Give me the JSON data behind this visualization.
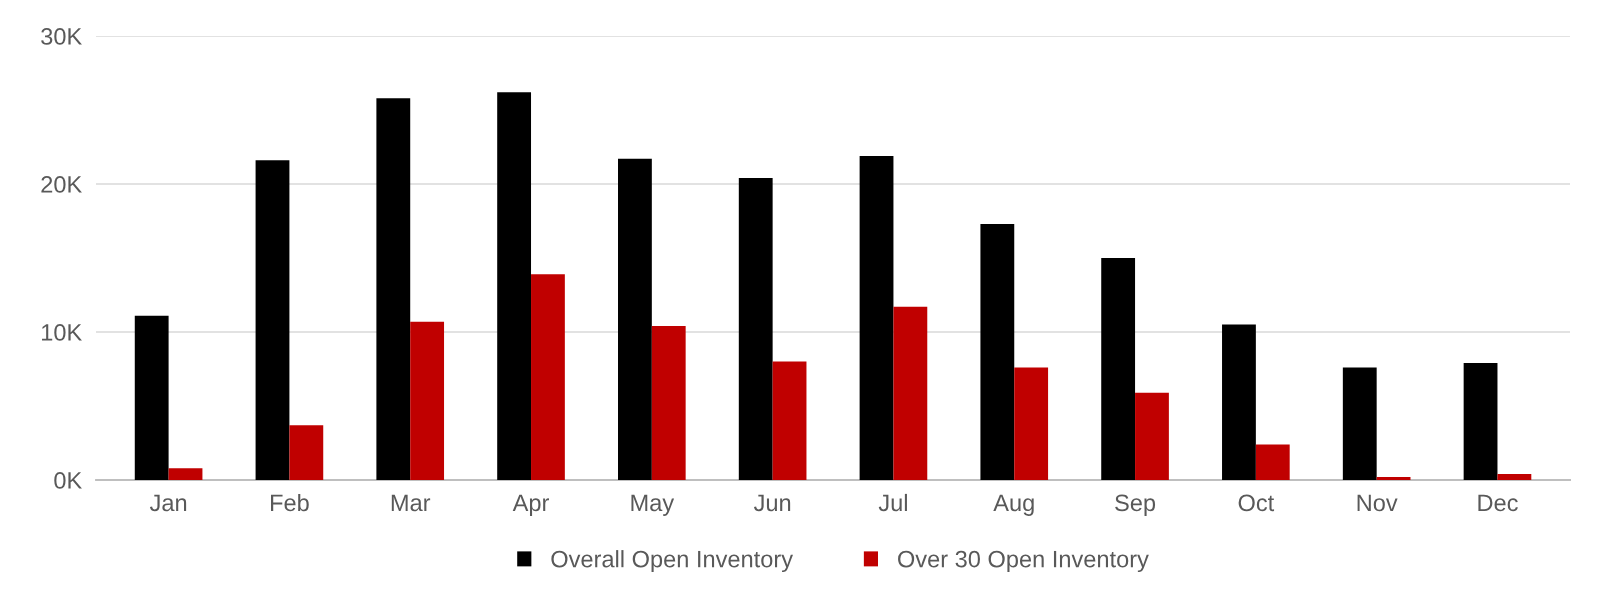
{
  "chart_data": {
    "type": "bar",
    "categories": [
      "Jan",
      "Feb",
      "Mar",
      "Apr",
      "May",
      "Jun",
      "Jul",
      "Aug",
      "Sep",
      "Oct",
      "Nov",
      "Dec"
    ],
    "series": [
      {
        "name": "Overall Open Inventory",
        "color": "#000000",
        "values": [
          11100,
          21600,
          25800,
          26200,
          21700,
          20400,
          21900,
          17300,
          15000,
          10500,
          7600,
          7900
        ]
      },
      {
        "name": "Over 30 Open Inventory",
        "color": "#c00000",
        "values": [
          800,
          3700,
          10700,
          13900,
          10400,
          8000,
          11700,
          7600,
          5900,
          2400,
          200,
          400
        ]
      }
    ],
    "ylim": [
      0,
      30000
    ],
    "yticks": [
      {
        "value": 0,
        "label": "0K"
      },
      {
        "value": 10000,
        "label": "10K"
      },
      {
        "value": 20000,
        "label": "20K"
      },
      {
        "value": 30000,
        "label": "30K"
      }
    ],
    "grid": "y",
    "legend": "bottom"
  }
}
